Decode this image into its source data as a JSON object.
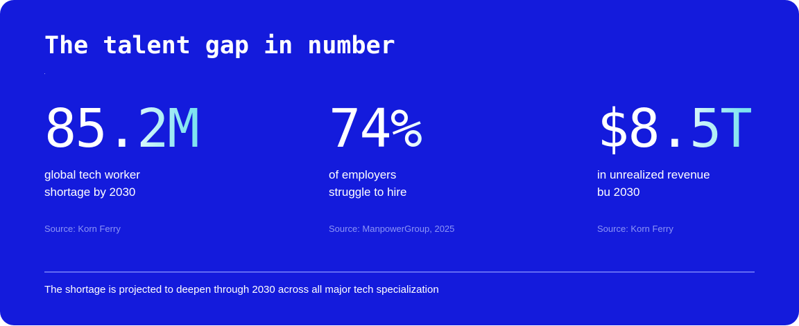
{
  "card": {
    "title": "The talent gap in number",
    "accent_color": "#141bdc",
    "stats": [
      {
        "value": "85.2M",
        "description_lines": [
          "global tech worker",
          "shortage by 2030"
        ],
        "source": "Source: Korn Ferry"
      },
      {
        "value": "74%",
        "description_lines": [
          "of employers",
          "struggle to hire"
        ],
        "source": "Source: ManpowerGroup, 2025"
      },
      {
        "value": "$8.5T",
        "description_lines": [
          "in unrealized revenue",
          "bu 2030"
        ],
        "source": "Source: Korn Ferry"
      }
    ],
    "footer_note": "The shortage is projected to deepen through 2030 across all major tech specialization"
  }
}
